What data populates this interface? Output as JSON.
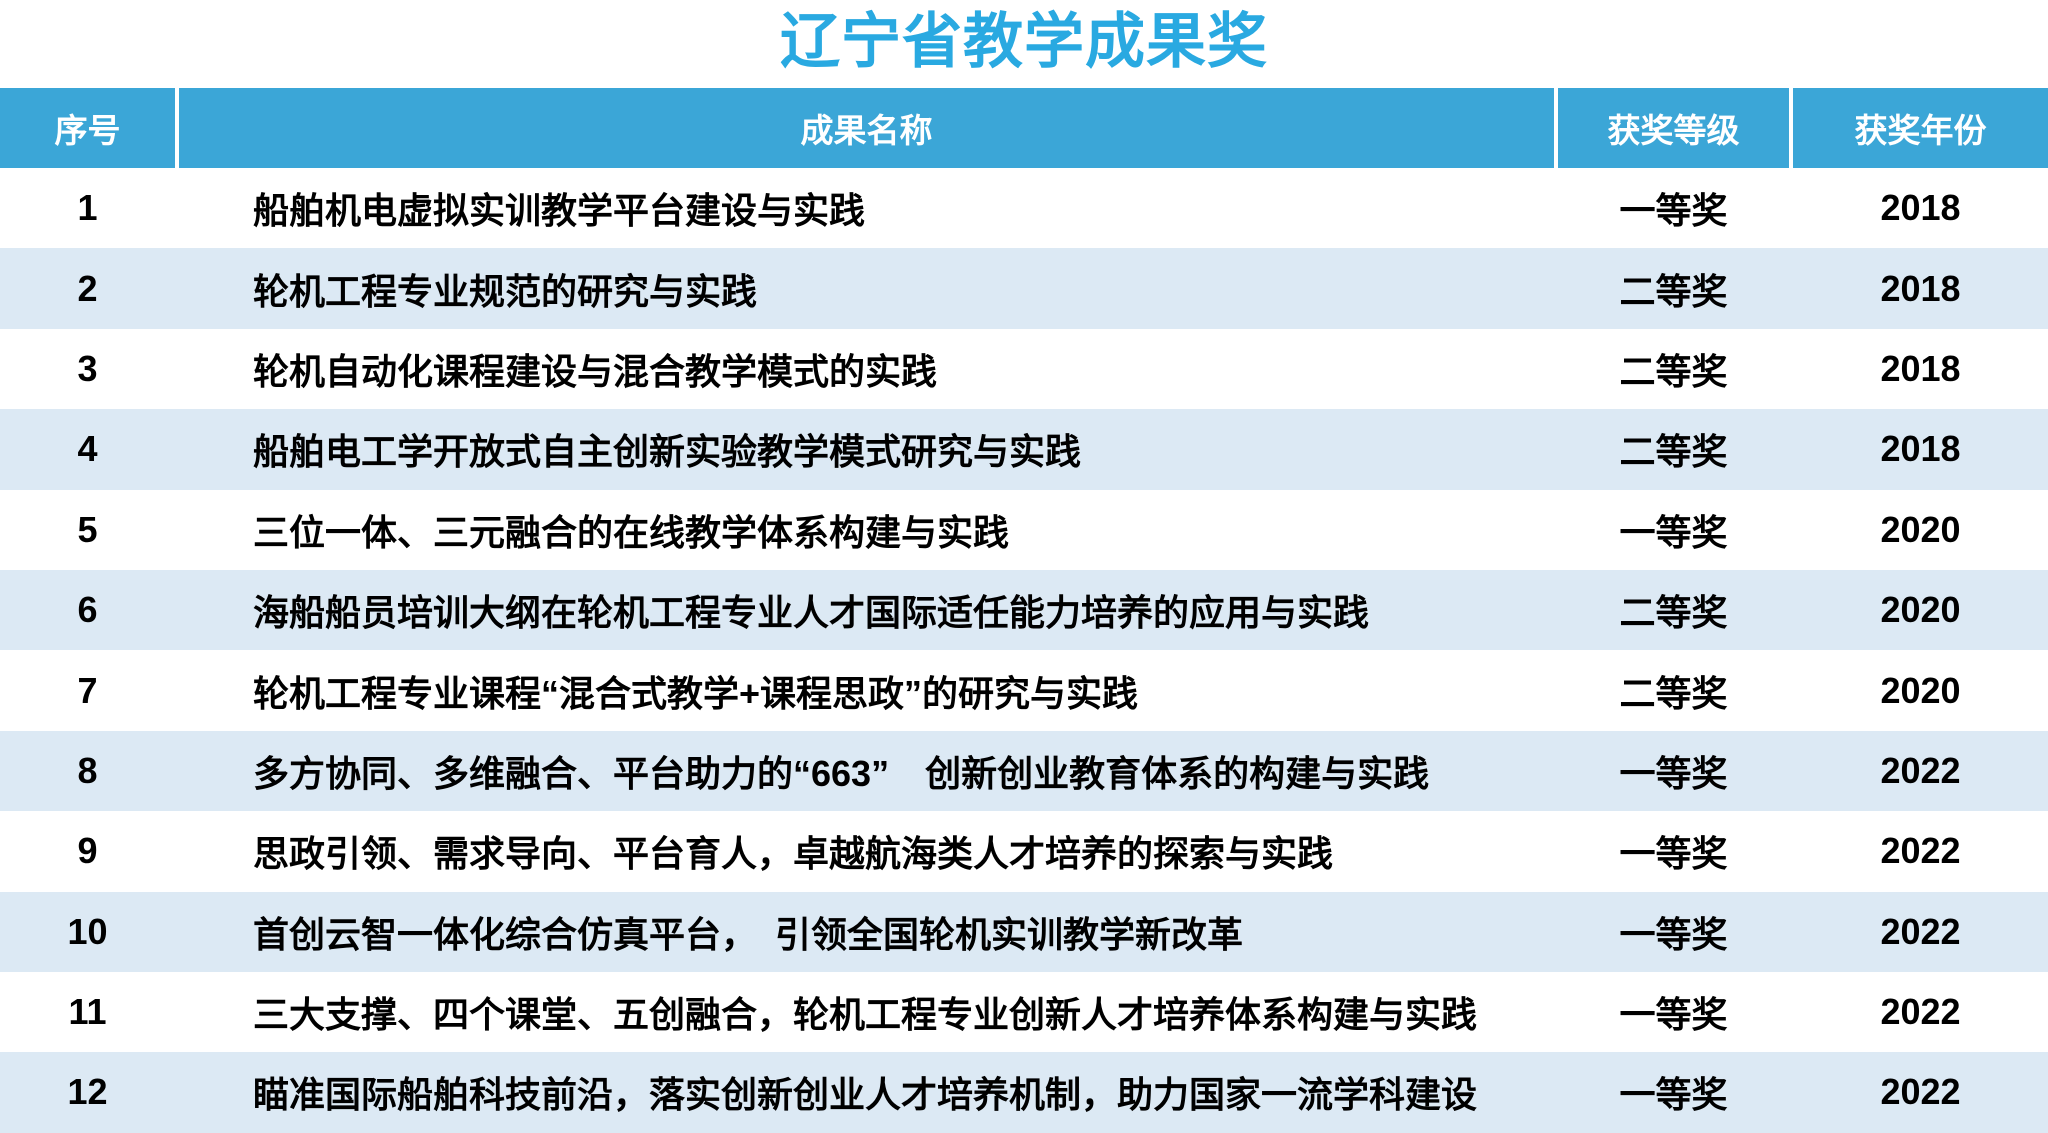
{
  "title": "辽宁省教学成果奖",
  "colors": {
    "title_text": "#29a9e1",
    "header_bg": "#3ba6d7",
    "header_text": "#ffffff",
    "stripe_bg": "#dce9f4",
    "body_text": "#000000"
  },
  "table": {
    "headers": {
      "num": "序号",
      "name": "成果名称",
      "level": "获奖等级",
      "year": "获奖年份"
    },
    "rows": [
      {
        "num": "1",
        "name": "船舶机电虚拟实训教学平台建设与实践",
        "level": "一等奖",
        "year": "2018"
      },
      {
        "num": "2",
        "name": "轮机工程专业规范的研究与实践",
        "level": "二等奖",
        "year": "2018"
      },
      {
        "num": "3",
        "name": "轮机自动化课程建设与混合教学模式的实践",
        "level": "二等奖",
        "year": "2018"
      },
      {
        "num": "4",
        "name": "船舶电工学开放式自主创新实验教学模式研究与实践",
        "level": "二等奖",
        "year": "2018"
      },
      {
        "num": "5",
        "name": "三位一体、三元融合的在线教学体系构建与实践",
        "level": "一等奖",
        "year": "2020"
      },
      {
        "num": "6",
        "name": "海船船员培训大纲在轮机工程专业人才国际适任能力培养的应用与实践",
        "level": "二等奖",
        "year": "2020"
      },
      {
        "num": "7",
        "name": "轮机工程专业课程“混合式教学+课程思政”的研究与实践",
        "level": "二等奖",
        "year": "2020"
      },
      {
        "num": "8",
        "name": "多方协同、多维融合、平台助力的“663”　创新创业教育体系的构建与实践",
        "level": "一等奖",
        "year": "2022"
      },
      {
        "num": "9",
        "name": "思政引领、需求导向、平台育人，卓越航海类人才培养的探索与实践",
        "level": "一等奖",
        "year": "2022"
      },
      {
        "num": "10",
        "name": "首创云智一体化综合仿真平台，　引领全国轮机实训教学新改革",
        "level": "一等奖",
        "year": "2022"
      },
      {
        "num": "11",
        "name": "三大支撑、四个课堂、五创融合，轮机工程专业创新人才培养体系构建与实践",
        "level": "一等奖",
        "year": "2022"
      },
      {
        "num": "12",
        "name": "瞄准国际船舶科技前沿，落实创新创业人才培养机制，助力国家一流学科建设",
        "level": "一等奖",
        "year": "2022"
      }
    ]
  }
}
